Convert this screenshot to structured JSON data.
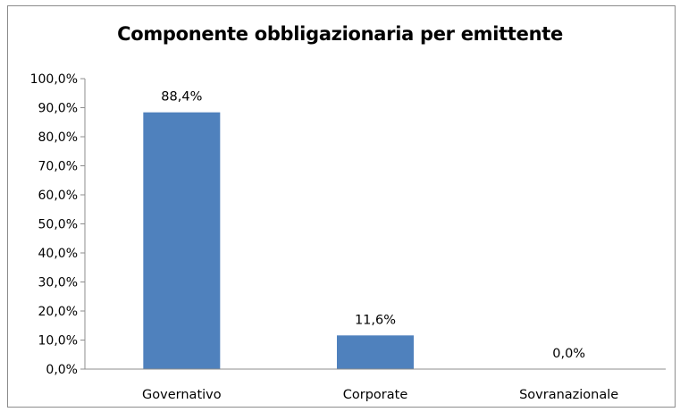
{
  "chart_data": {
    "type": "bar",
    "title": "Componente obbligazionaria per emittente",
    "categories": [
      "Governativo",
      "Corporate",
      "Sovranazionale"
    ],
    "values": [
      88.4,
      11.6,
      0.0
    ],
    "data_labels": [
      "88,4%",
      "11,6%",
      "0,0%"
    ],
    "ylim": [
      0,
      100
    ],
    "yticks": [
      0,
      10,
      20,
      30,
      40,
      50,
      60,
      70,
      80,
      90,
      100
    ],
    "ytick_labels": [
      "0,0%",
      "10,0%",
      "20,0%",
      "30,0%",
      "40,0%",
      "50,0%",
      "60,0%",
      "70,0%",
      "80,0%",
      "90,0%",
      "100,0%"
    ],
    "xlabel": "",
    "ylabel": "",
    "grid": false,
    "legend": "none",
    "bar_color": "#4f81bd"
  }
}
